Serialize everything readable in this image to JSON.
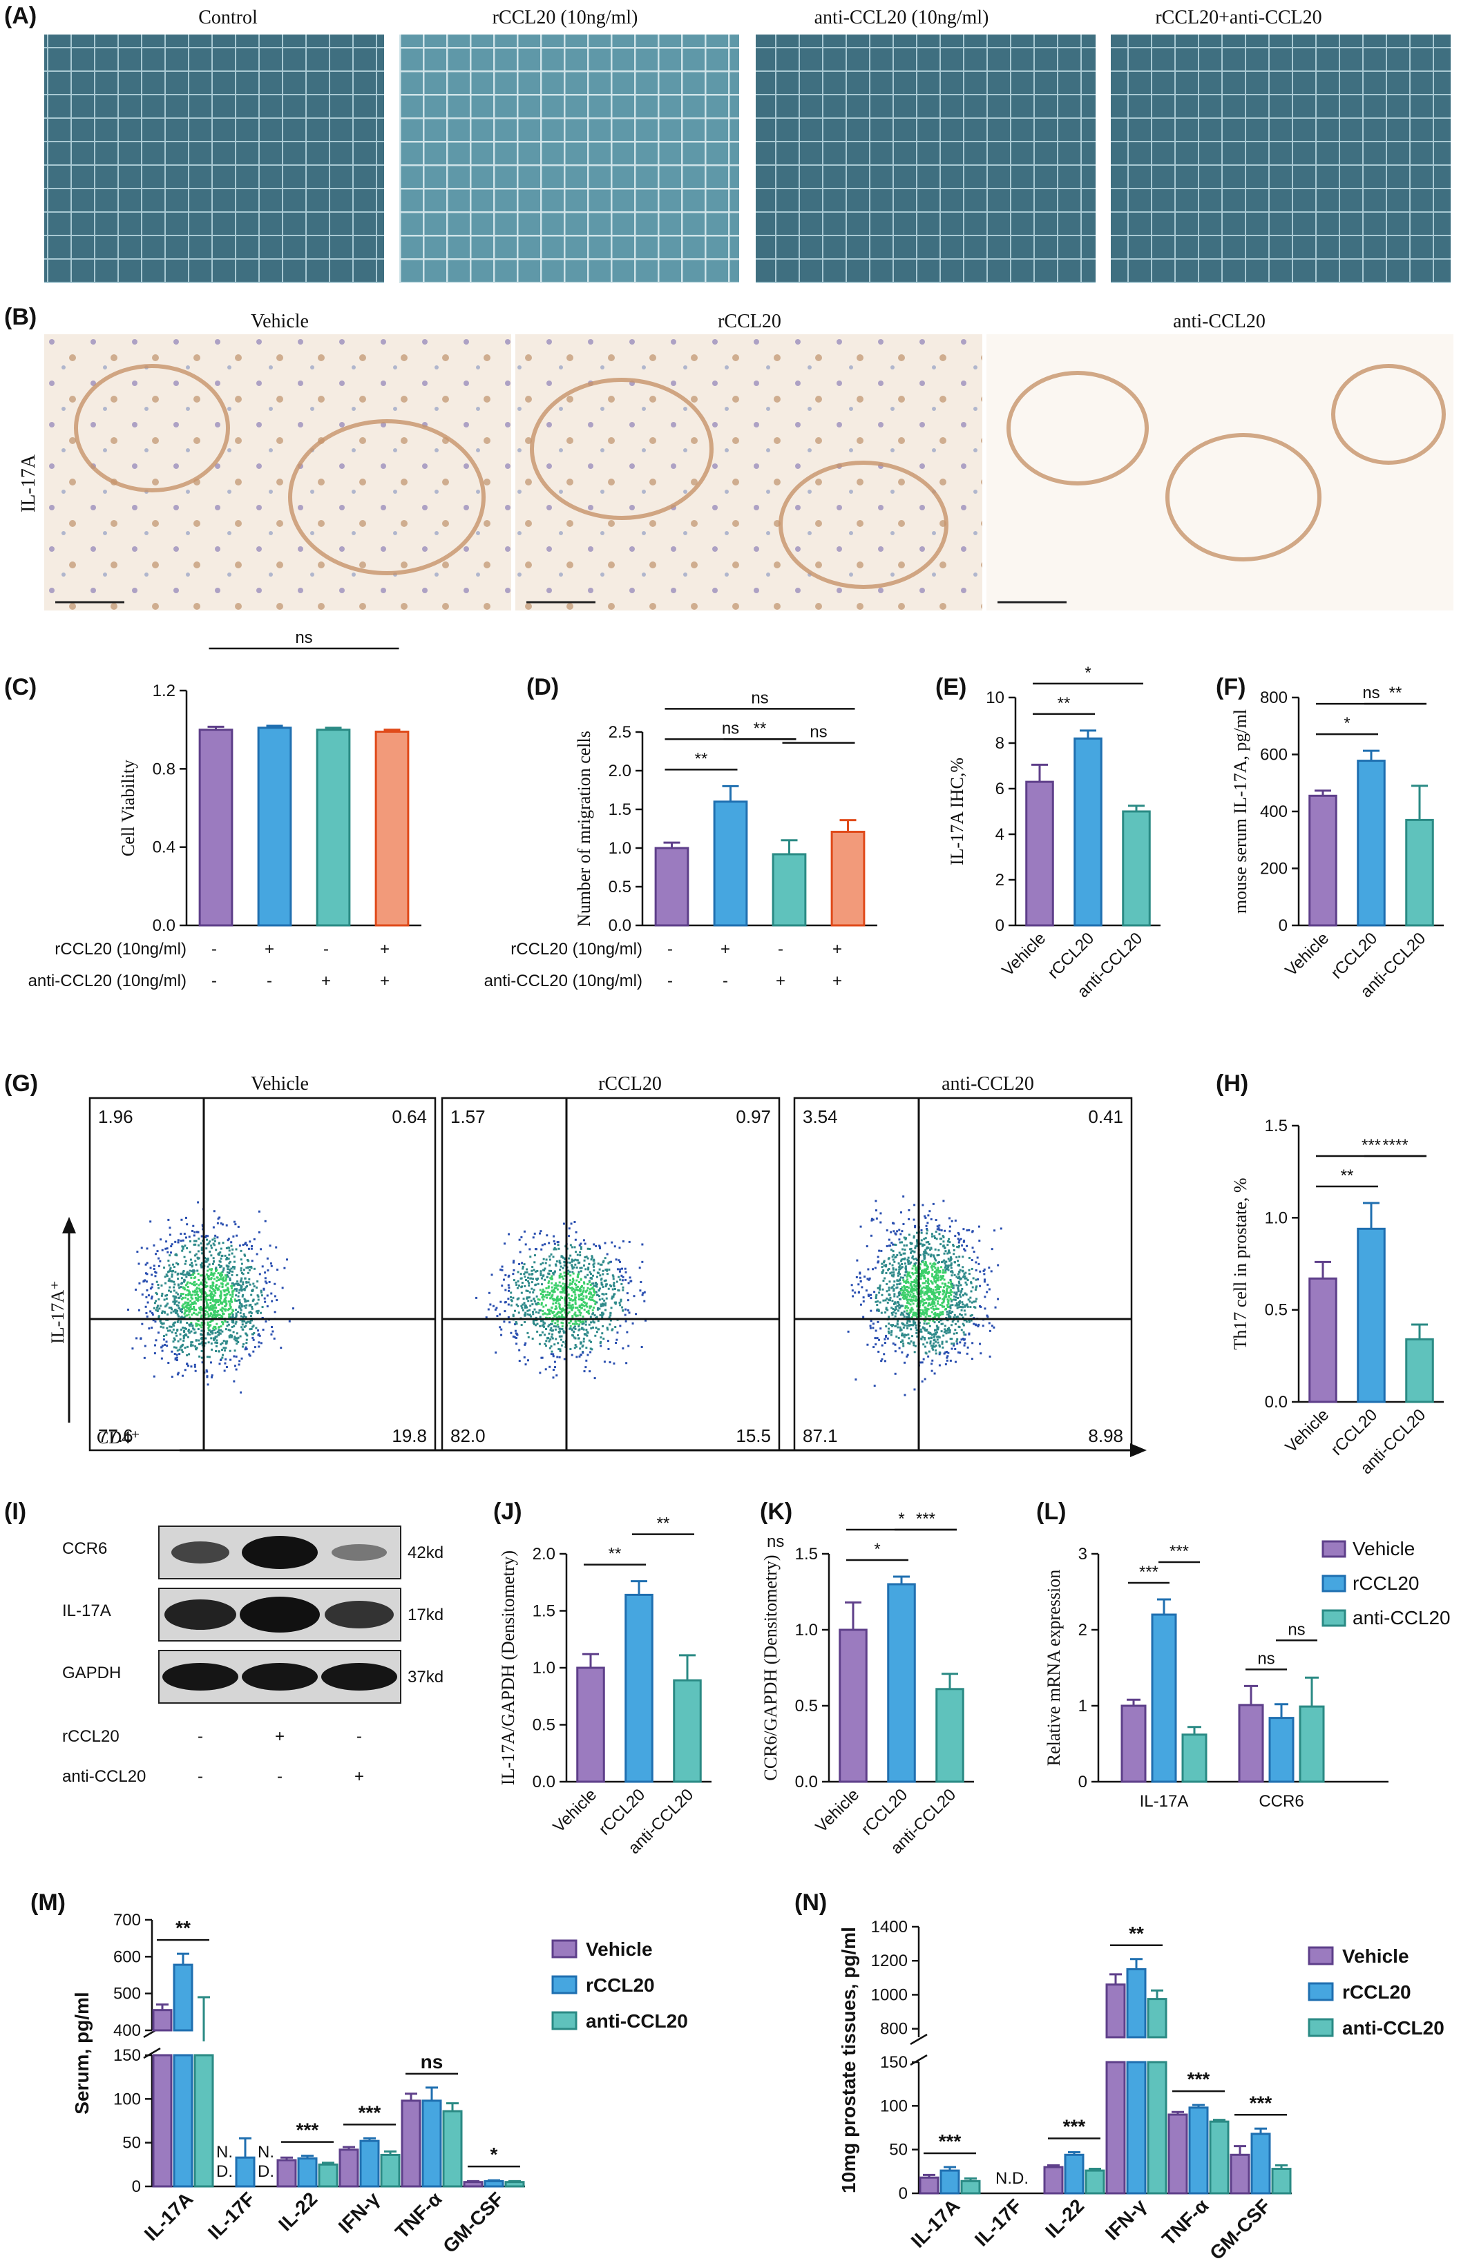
{
  "colors": {
    "purple": "#9b7bbf",
    "blue": "#46a6e0",
    "teal": "#5fc2bc",
    "orange": "#f29a7a",
    "purple_edge": "#5e3f8a",
    "blue_edge": "#1f6fb0",
    "teal_edge": "#2a8a84",
    "orange_edge": "#e04a1a"
  },
  "panelA": {
    "label": "(A)",
    "titles": [
      "Control",
      "rCCL20 (10ng/ml)",
      "anti-CCL20 (10ng/ml)",
      "rCCL20+anti-CCL20"
    ]
  },
  "panelB": {
    "label": "(B)",
    "titles": [
      "Vehicle",
      "rCCL20",
      "anti-CCL20"
    ],
    "row_label": "IL-17A"
  },
  "panelC": {
    "label": "(C)",
    "row1_label": "rCCL20  (10ng/ml)",
    "row2_label": "anti-CCL20  (10ng/ml)",
    "row1": [
      "-",
      "+",
      "-",
      "+"
    ],
    "row2": [
      "-",
      "-",
      "+",
      "+"
    ]
  },
  "panelD": {
    "label": "(D)",
    "row1_label": "rCCL20  (10ng/ml)",
    "row2_label": "anti-CCL20  (10ng/ml)",
    "row1": [
      "-",
      "+",
      "-",
      "+"
    ],
    "row2": [
      "-",
      "-",
      "+",
      "+"
    ]
  },
  "panelE": {
    "label": "(E)"
  },
  "panelF": {
    "label": "(F)"
  },
  "panelG": {
    "label": "(G)",
    "titles": [
      "Vehicle",
      "rCCL20",
      "anti-CCL20"
    ],
    "quadrants": [
      [
        "1.96",
        "0.64",
        "77.6",
        "19.8"
      ],
      [
        "1.57",
        "0.97",
        "82.0",
        "15.5"
      ],
      [
        "3.54",
        "0.41",
        "87.1",
        "8.98"
      ]
    ],
    "ylabel": "IL-17A⁺",
    "xlabel": "CD4⁺"
  },
  "panelH": {
    "label": "(H)"
  },
  "panelI": {
    "label": "(I)",
    "bands": [
      "CCR6",
      "IL-17A",
      "GAPDH"
    ],
    "sizes": [
      "42kd",
      "17kd",
      "37kd"
    ],
    "row1_label": "rCCL20",
    "row2_label": "anti-CCL20",
    "row1": [
      "-",
      "+",
      "-"
    ],
    "row2": [
      "-",
      "-",
      "+"
    ]
  },
  "panelJ": {
    "label": "(J)"
  },
  "panelK": {
    "label": "(K)",
    "note": "ns"
  },
  "panelL": {
    "label": "(L)"
  },
  "panelM": {
    "label": "(M)"
  },
  "panelN": {
    "label": "(N)"
  },
  "chart_data": [
    {
      "id": "C",
      "type": "bar",
      "ylabel": "Cell Viability",
      "ylim": [
        0,
        1.2
      ],
      "yticks": [
        "0.0",
        "0.4",
        "0.8",
        "1.2"
      ],
      "values": [
        1.0,
        1.01,
        1.0,
        0.99
      ],
      "errors": [
        0.015,
        0.01,
        0.01,
        0.01
      ],
      "sig": [
        {
          "a": 0,
          "b": 3,
          "t": "ns"
        }
      ]
    },
    {
      "id": "D",
      "type": "bar",
      "ylabel": "Number of mrigration cells",
      "ylim": [
        0,
        2.5
      ],
      "yticks": [
        "0.0",
        "0.5",
        "1.0",
        "1.5",
        "2.0",
        "2.5"
      ],
      "values": [
        1.0,
        1.6,
        0.92,
        1.21
      ],
      "errors": [
        0.07,
        0.2,
        0.18,
        0.15
      ],
      "sig": [
        {
          "a": 0,
          "b": 1,
          "t": "**"
        },
        {
          "a": 1,
          "b": 2,
          "t": "**"
        },
        {
          "a": 2,
          "b": 3,
          "t": "ns"
        },
        {
          "a": 0,
          "b": 2,
          "t": "ns"
        },
        {
          "a": 0,
          "b": 3,
          "t": "ns"
        }
      ]
    },
    {
      "id": "E",
      "type": "bar",
      "ylabel": "IL-17A IHC,%",
      "ylim": [
        0,
        10
      ],
      "yticks": [
        "0",
        "2",
        "4",
        "6",
        "8",
        "10"
      ],
      "categories": [
        "Vehicle",
        "rCCL20",
        "anti-CCL20"
      ],
      "values": [
        6.3,
        8.2,
        5.0
      ],
      "errors": [
        0.75,
        0.35,
        0.25
      ],
      "sig": [
        {
          "a": 0,
          "b": 1,
          "t": "**"
        },
        {
          "a": 0,
          "b": 2,
          "t": "*"
        }
      ]
    },
    {
      "id": "F",
      "type": "bar",
      "ylabel": "mouse serum IL-17A, pg/ml",
      "ylim": [
        0,
        800
      ],
      "yticks": [
        "0",
        "200",
        "400",
        "600",
        "800"
      ],
      "categories": [
        "Vehicle",
        "rCCL20",
        "anti-CCL20"
      ],
      "values": [
        455,
        578,
        370
      ],
      "errors": [
        18,
        35,
        120
      ],
      "sig": [
        {
          "a": 0,
          "b": 1,
          "t": "*"
        },
        {
          "a": 1,
          "b": 2,
          "t": "**"
        },
        {
          "a": 0,
          "b": 2,
          "t": "ns"
        }
      ]
    },
    {
      "id": "H",
      "type": "bar",
      "ylabel": "Th17 cell in prostate, %",
      "ylim": [
        0,
        1.5
      ],
      "yticks": [
        "0.0",
        "0.5",
        "1.0",
        "1.5"
      ],
      "categories": [
        "Vehicle",
        "rCCL20",
        "anti-CCL20"
      ],
      "values": [
        0.67,
        0.94,
        0.34
      ],
      "errors": [
        0.09,
        0.14,
        0.08
      ],
      "sig": [
        {
          "a": 0,
          "b": 1,
          "t": "**"
        },
        {
          "a": 1,
          "b": 2,
          "t": "****"
        },
        {
          "a": 0,
          "b": 2,
          "t": "***"
        }
      ]
    },
    {
      "id": "J",
      "type": "bar",
      "ylabel": "IL-17A/GAPDH (Densitometry)",
      "ylim": [
        0,
        2.0
      ],
      "yticks": [
        "0.0",
        "0.5",
        "1.0",
        "1.5",
        "2.0"
      ],
      "categories": [
        "Vehicle",
        "rCCL20",
        "anti-CCL20"
      ],
      "values": [
        1.0,
        1.64,
        0.89
      ],
      "errors": [
        0.12,
        0.12,
        0.22
      ],
      "sig": [
        {
          "a": 0,
          "b": 1,
          "t": "**"
        },
        {
          "a": 1,
          "b": 2,
          "t": "**"
        }
      ]
    },
    {
      "id": "K",
      "type": "bar",
      "ylabel": "CCR6/GAPDH (Densitometry)",
      "ylim": [
        0,
        1.5
      ],
      "yticks": [
        "0.0",
        "0.5",
        "1.0",
        "1.5"
      ],
      "categories": [
        "Vehicle",
        "rCCL20",
        "anti-CCL20"
      ],
      "values": [
        1.0,
        1.3,
        0.61
      ],
      "errors": [
        0.18,
        0.05,
        0.1
      ],
      "sig": [
        {
          "a": 0,
          "b": 1,
          "t": "*"
        },
        {
          "a": 1,
          "b": 2,
          "t": "***"
        },
        {
          "a": 0,
          "b": 2,
          "t": "*"
        }
      ]
    },
    {
      "id": "L",
      "type": "bar",
      "ylabel": "Relative mRNA expression",
      "ylim": [
        0,
        3
      ],
      "yticks": [
        "0",
        "1",
        "2",
        "3"
      ],
      "categories": [
        "IL-17A",
        "CCR6"
      ],
      "legend": [
        "Vehicle",
        "rCCL20",
        "anti-CCL20"
      ],
      "series": [
        {
          "values": [
            1.0,
            1.01
          ],
          "errors": [
            0.08,
            0.25
          ]
        },
        {
          "values": [
            2.2,
            0.84
          ],
          "errors": [
            0.2,
            0.18
          ]
        },
        {
          "values": [
            0.62,
            0.99
          ],
          "errors": [
            0.1,
            0.38
          ]
        }
      ],
      "sig": [
        {
          "g": 0,
          "a": 0,
          "b": 1,
          "t": "***"
        },
        {
          "g": 0,
          "a": 1,
          "b": 2,
          "t": "***"
        },
        {
          "g": 1,
          "a": 0,
          "b": 1,
          "t": "ns"
        },
        {
          "g": 1,
          "a": 1,
          "b": 2,
          "t": "ns"
        }
      ]
    },
    {
      "id": "M",
      "type": "bar",
      "ylabel": "Serum, pg/ml",
      "broken_axis": [
        150,
        400
      ],
      "yticks_low": [
        "0",
        "50",
        "100",
        "150"
      ],
      "yticks_high": [
        "400",
        "500",
        "600",
        "700"
      ],
      "categories": [
        "IL-17A",
        "IL-17F",
        "IL-22",
        "IFN-γ",
        "TNF-α",
        "GM-CSF"
      ],
      "legend": [
        "Vehicle",
        "rCCL20",
        "anti-CCL20"
      ],
      "series": [
        {
          "values": [
            455,
            0,
            30,
            42,
            98,
            5
          ],
          "errors": [
            15,
            0,
            3,
            3,
            8,
            1
          ]
        },
        {
          "values": [
            578,
            33,
            32,
            52,
            98,
            6
          ],
          "errors": [
            30,
            22,
            3,
            3,
            15,
            1
          ]
        },
        {
          "values": [
            370,
            0,
            25,
            36,
            86,
            5
          ],
          "errors": [
            120,
            0,
            2,
            4,
            9,
            1
          ]
        }
      ],
      "nd": [
        {
          "cat": 1,
          "ser": 0,
          "t": "N.\nD."
        },
        {
          "cat": 1,
          "ser": 2,
          "t": "N.\nD."
        }
      ],
      "sig": [
        {
          "cat": 0,
          "t": "**"
        },
        {
          "cat": 2,
          "t": "***"
        },
        {
          "cat": 3,
          "t": "***"
        },
        {
          "cat": 4,
          "t": "ns"
        },
        {
          "cat": 5,
          "t": "*"
        }
      ]
    },
    {
      "id": "N",
      "type": "bar",
      "ylabel": "10mg prostate tissues, pg/ml",
      "broken_axis": [
        150,
        750
      ],
      "yticks_low": [
        "0",
        "50",
        "100",
        "150"
      ],
      "yticks_high": [
        "800",
        "1000",
        "1200",
        "1400"
      ],
      "categories": [
        "IL-17A",
        "IL-17F",
        "IL-22",
        "IFN-γ",
        "TNF-α",
        "GM-CSF"
      ],
      "legend": [
        "Vehicle",
        "rCCL20",
        "anti-CCL20"
      ],
      "series": [
        {
          "values": [
            18,
            0,
            30,
            1060,
            90,
            44
          ],
          "errors": [
            3,
            0,
            2,
            60,
            3,
            10
          ]
        },
        {
          "values": [
            26,
            0,
            44,
            1150,
            98,
            68
          ],
          "errors": [
            4,
            0,
            3,
            60,
            3,
            6
          ]
        },
        {
          "values": [
            14,
            0,
            26,
            975,
            82,
            28
          ],
          "errors": [
            3,
            0,
            2,
            50,
            2,
            4
          ]
        }
      ],
      "nd": [
        {
          "cat": 1,
          "ser": 1,
          "t": "N.D."
        }
      ],
      "sig": [
        {
          "cat": 0,
          "t": "***"
        },
        {
          "cat": 2,
          "t": "***"
        },
        {
          "cat": 3,
          "t": "**"
        },
        {
          "cat": 4,
          "t": "***"
        },
        {
          "cat": 5,
          "t": "***"
        }
      ]
    }
  ]
}
